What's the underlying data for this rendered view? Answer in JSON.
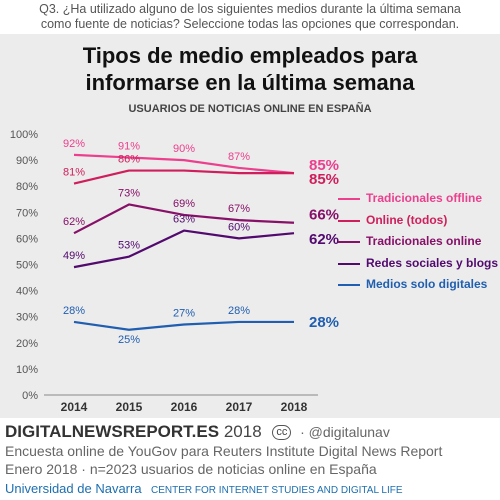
{
  "question": {
    "line1": "Q3. ¿Ha utilizado alguno de los siguientes medios durante la última semana",
    "line2": "como fuente de noticias? Seleccione todas las opciones que correspondan."
  },
  "chart_data": {
    "type": "line",
    "title_line1": "Tipos de medio empleados para",
    "title_line2": "informarse en la última semana",
    "subtitle": "USUARIOS DE NOTICIAS ONLINE EN ESPAÑA",
    "x": [
      "2014",
      "2015",
      "2016",
      "2017",
      "2018"
    ],
    "ylim": [
      0,
      100
    ],
    "yticks": [
      "0%",
      "10%",
      "20%",
      "30%",
      "40%",
      "50%",
      "60%",
      "70%",
      "80%",
      "90%",
      "100%"
    ],
    "grid": false,
    "legend_position": "right",
    "series": [
      {
        "name": "Tradicionales offline",
        "color": "#ec3f8e",
        "values": [
          92,
          91,
          90,
          87,
          85
        ],
        "labels": [
          "92%",
          "91%",
          "90%",
          "87%",
          "85%"
        ]
      },
      {
        "name": "Online (todos)",
        "color": "#cf1e5c",
        "values": [
          81,
          86,
          86,
          85,
          85
        ],
        "labels": [
          "81%",
          "86%",
          "",
          "",
          "85%"
        ]
      },
      {
        "name": "Tradicionales online",
        "color": "#871068",
        "values": [
          62,
          73,
          69,
          67,
          66
        ],
        "labels": [
          "62%",
          "73%",
          "69%",
          "67%",
          "66%"
        ]
      },
      {
        "name": "Redes sociales y blogs",
        "color": "#520a6e",
        "values": [
          49,
          53,
          63,
          60,
          62
        ],
        "labels": [
          "49%",
          "53%",
          "63%",
          "60%",
          "62%"
        ]
      },
      {
        "name": "Medios solo digitales",
        "color": "#1f5eb0",
        "values": [
          28,
          25,
          27,
          28,
          28
        ],
        "labels": [
          "28%",
          "25%",
          "27%",
          "28%",
          "28%"
        ]
      }
    ]
  },
  "footer": {
    "brand": "DIGITALNEWSREPORT.ES",
    "year": "2018",
    "cc": "cc",
    "handle": "· @digitalunav",
    "line1": "Encuesta online de YouGov para Reuters Institute Digital News Report",
    "line2": "Enero 2018 · n=2023 usuarios de noticias online en España",
    "university": "Universidad de Navarra",
    "center": "CENTER FOR INTERNET STUDIES AND DIGITAL LIFE"
  }
}
